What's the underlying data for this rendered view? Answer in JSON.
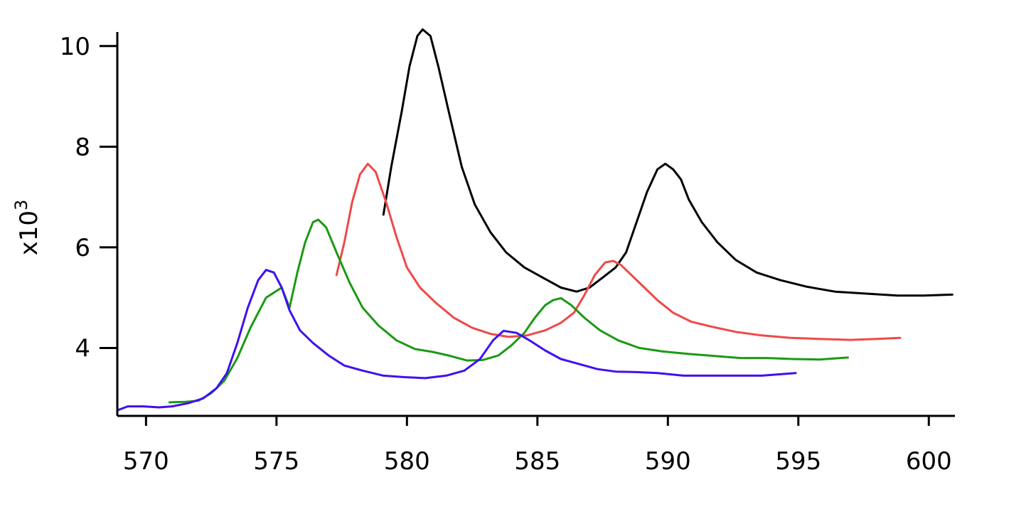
{
  "chart_data": {
    "type": "line",
    "title": "",
    "xlabel": "",
    "ylabel": {
      "base": "x10",
      "exponent": "3"
    },
    "xlim": [
      568.9,
      601
    ],
    "ylim": [
      2.65,
      10.35
    ],
    "x_ticks": [
      570,
      575,
      580,
      585,
      590,
      595,
      600
    ],
    "y_ticks": [
      4,
      6,
      8,
      10
    ],
    "x_tick_labels": [
      "570",
      "575",
      "580",
      "585",
      "590",
      "595",
      "600"
    ],
    "y_tick_labels": [
      "4",
      "6",
      "8",
      "10"
    ],
    "grid": false,
    "legend": "none",
    "series": [
      {
        "color": "#000000",
        "points": [
          [
            579.1,
            6.65
          ],
          [
            579.4,
            7.6
          ],
          [
            579.8,
            8.7
          ],
          [
            580.1,
            9.6
          ],
          [
            580.4,
            10.2
          ],
          [
            580.6,
            10.33
          ],
          [
            580.9,
            10.2
          ],
          [
            581.2,
            9.6
          ],
          [
            581.6,
            8.7
          ],
          [
            582.1,
            7.6
          ],
          [
            582.6,
            6.85
          ],
          [
            583.2,
            6.3
          ],
          [
            583.8,
            5.9
          ],
          [
            584.5,
            5.6
          ],
          [
            585.2,
            5.4
          ],
          [
            585.9,
            5.2
          ],
          [
            586.5,
            5.12
          ],
          [
            587.0,
            5.2
          ],
          [
            587.5,
            5.4
          ],
          [
            588.0,
            5.6
          ],
          [
            588.4,
            5.9
          ],
          [
            588.8,
            6.5
          ],
          [
            589.2,
            7.1
          ],
          [
            589.6,
            7.55
          ],
          [
            589.9,
            7.66
          ],
          [
            590.2,
            7.55
          ],
          [
            590.5,
            7.35
          ],
          [
            590.8,
            6.95
          ],
          [
            591.3,
            6.5
          ],
          [
            591.9,
            6.1
          ],
          [
            592.6,
            5.75
          ],
          [
            593.4,
            5.5
          ],
          [
            594.3,
            5.35
          ],
          [
            595.3,
            5.22
          ],
          [
            596.4,
            5.12
          ],
          [
            597.6,
            5.08
          ],
          [
            598.8,
            5.04
          ],
          [
            599.8,
            5.04
          ],
          [
            600.9,
            5.06
          ]
        ]
      },
      {
        "color": "#f04848",
        "points": [
          [
            577.3,
            5.45
          ],
          [
            577.6,
            6.1
          ],
          [
            577.9,
            6.9
          ],
          [
            578.2,
            7.45
          ],
          [
            578.5,
            7.66
          ],
          [
            578.8,
            7.5
          ],
          [
            579.2,
            6.9
          ],
          [
            579.6,
            6.2
          ],
          [
            580.0,
            5.6
          ],
          [
            580.5,
            5.2
          ],
          [
            581.1,
            4.9
          ],
          [
            581.8,
            4.6
          ],
          [
            582.5,
            4.4
          ],
          [
            583.2,
            4.28
          ],
          [
            583.9,
            4.22
          ],
          [
            584.6,
            4.25
          ],
          [
            585.3,
            4.35
          ],
          [
            585.9,
            4.5
          ],
          [
            586.4,
            4.7
          ],
          [
            586.8,
            5.05
          ],
          [
            587.2,
            5.45
          ],
          [
            587.6,
            5.7
          ],
          [
            587.9,
            5.73
          ],
          [
            588.2,
            5.65
          ],
          [
            588.6,
            5.45
          ],
          [
            589.1,
            5.2
          ],
          [
            589.6,
            4.95
          ],
          [
            590.2,
            4.7
          ],
          [
            590.9,
            4.52
          ],
          [
            591.7,
            4.42
          ],
          [
            592.6,
            4.32
          ],
          [
            593.6,
            4.25
          ],
          [
            594.7,
            4.2
          ],
          [
            595.8,
            4.18
          ],
          [
            597.0,
            4.16
          ],
          [
            598.0,
            4.18
          ],
          [
            598.9,
            4.2
          ]
        ]
      },
      {
        "color": "#1b9a14",
        "points": [
          [
            570.9,
            2.92
          ],
          [
            571.5,
            2.93
          ],
          [
            572.0,
            2.95
          ],
          [
            572.5,
            3.1
          ],
          [
            573.0,
            3.35
          ],
          [
            573.5,
            3.8
          ],
          [
            574.0,
            4.4
          ],
          [
            574.6,
            5.0
          ],
          [
            575.2,
            5.2
          ],
          [
            575.5,
            4.8
          ],
          [
            575.8,
            5.5
          ],
          [
            576.1,
            6.1
          ],
          [
            576.4,
            6.5
          ],
          [
            576.6,
            6.55
          ],
          [
            576.9,
            6.4
          ],
          [
            577.3,
            5.9
          ],
          [
            577.8,
            5.3
          ],
          [
            578.3,
            4.8
          ],
          [
            578.9,
            4.45
          ],
          [
            579.6,
            4.15
          ],
          [
            580.3,
            3.98
          ],
          [
            581.0,
            3.92
          ],
          [
            581.6,
            3.85
          ],
          [
            582.3,
            3.75
          ],
          [
            582.9,
            3.76
          ],
          [
            583.5,
            3.85
          ],
          [
            584.0,
            4.05
          ],
          [
            584.5,
            4.3
          ],
          [
            584.9,
            4.6
          ],
          [
            585.3,
            4.85
          ],
          [
            585.6,
            4.95
          ],
          [
            585.9,
            4.99
          ],
          [
            586.3,
            4.85
          ],
          [
            586.8,
            4.6
          ],
          [
            587.4,
            4.35
          ],
          [
            588.1,
            4.15
          ],
          [
            588.9,
            4.0
          ],
          [
            589.8,
            3.93
          ],
          [
            590.8,
            3.88
          ],
          [
            591.8,
            3.84
          ],
          [
            592.8,
            3.8
          ],
          [
            593.8,
            3.8
          ],
          [
            594.8,
            3.78
          ],
          [
            595.8,
            3.77
          ],
          [
            596.9,
            3.81
          ]
        ]
      },
      {
        "color": "#4010f0",
        "points": [
          [
            568.9,
            2.76
          ],
          [
            569.3,
            2.84
          ],
          [
            569.9,
            2.84
          ],
          [
            570.5,
            2.82
          ],
          [
            571.0,
            2.84
          ],
          [
            571.6,
            2.9
          ],
          [
            572.2,
            3.0
          ],
          [
            572.7,
            3.2
          ],
          [
            573.1,
            3.5
          ],
          [
            573.5,
            4.1
          ],
          [
            573.9,
            4.8
          ],
          [
            574.3,
            5.35
          ],
          [
            574.6,
            5.55
          ],
          [
            574.9,
            5.5
          ],
          [
            575.2,
            5.2
          ],
          [
            575.5,
            4.75
          ],
          [
            575.9,
            4.35
          ],
          [
            576.4,
            4.1
          ],
          [
            577.0,
            3.85
          ],
          [
            577.6,
            3.65
          ],
          [
            578.3,
            3.55
          ],
          [
            579.1,
            3.45
          ],
          [
            579.9,
            3.42
          ],
          [
            580.7,
            3.4
          ],
          [
            581.5,
            3.45
          ],
          [
            582.2,
            3.55
          ],
          [
            582.8,
            3.78
          ],
          [
            583.3,
            4.15
          ],
          [
            583.7,
            4.34
          ],
          [
            584.2,
            4.3
          ],
          [
            584.7,
            4.15
          ],
          [
            585.3,
            3.95
          ],
          [
            585.9,
            3.78
          ],
          [
            586.6,
            3.68
          ],
          [
            587.3,
            3.58
          ],
          [
            588.0,
            3.53
          ],
          [
            588.8,
            3.52
          ],
          [
            589.6,
            3.5
          ],
          [
            590.6,
            3.45
          ],
          [
            591.6,
            3.45
          ],
          [
            592.6,
            3.45
          ],
          [
            593.6,
            3.45
          ],
          [
            594.9,
            3.5
          ]
        ]
      }
    ]
  }
}
